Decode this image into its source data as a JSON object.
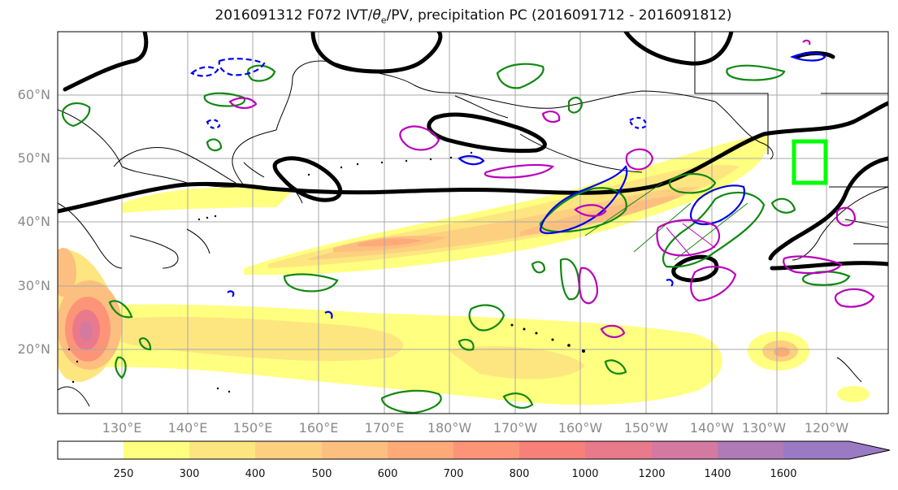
{
  "title": {
    "prefix": "2016091312 F072 IVT/",
    "theta_symbol": "θ",
    "theta_sub": "e",
    "suffix": "/PV, precipitation PC (2016091712 - 2016091812)"
  },
  "lat_labels": [
    "60°N",
    "50°N",
    "40°N",
    "30°N",
    "20°N"
  ],
  "lon_labels": [
    "130°E",
    "140°E",
    "150°E",
    "160°E",
    "170°E",
    "180°W",
    "170°W",
    "160°W",
    "150°W",
    "140°W",
    "130°W",
    "120°W"
  ],
  "colorbar": {
    "ticks": [
      "250",
      "300",
      "400",
      "500",
      "600",
      "700",
      "800",
      "1000",
      "1200",
      "1400",
      "1600"
    ],
    "colors": [
      "#ffffff",
      "#ffff80",
      "#fde680",
      "#fdd080",
      "#fdbf80",
      "#fdaa78",
      "#fd9478",
      "#f78078",
      "#e87a8c",
      "#d47aa0",
      "#b07ab8",
      "#9b7ac4"
    ]
  },
  "colors": {
    "ivt_contour": "#000000",
    "green_contour": "#118811",
    "blue_contour": "#0000ee",
    "magenta_contour": "#bb00bb",
    "target_box": "#00ff00",
    "coastline": "#000000"
  }
}
